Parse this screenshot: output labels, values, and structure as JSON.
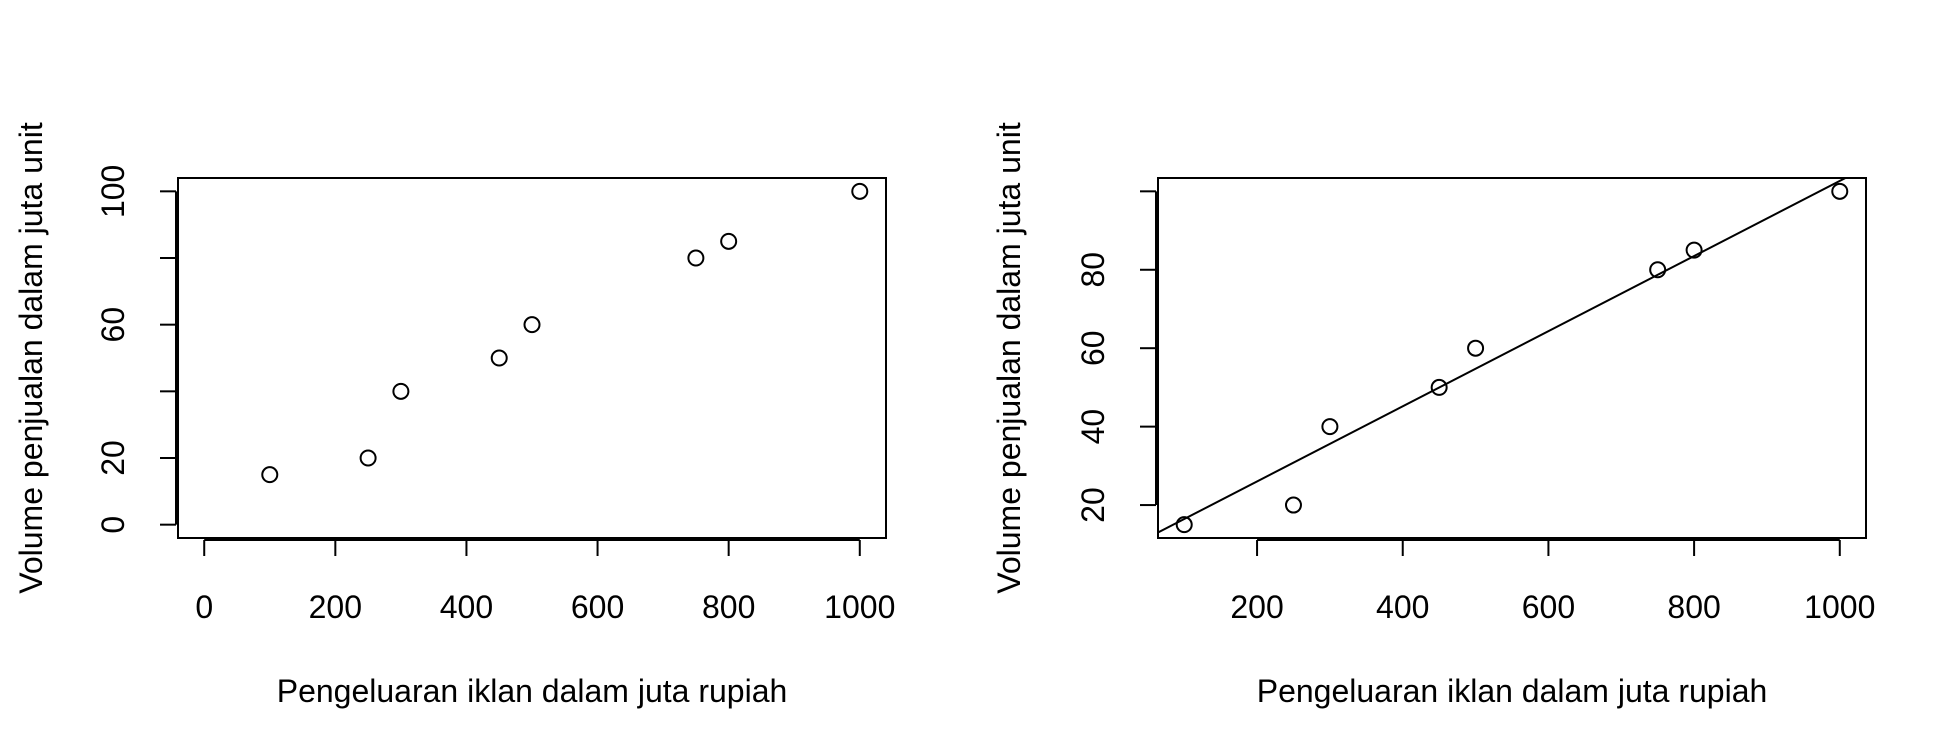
{
  "chart_data": [
    {
      "type": "scatter",
      "xlabel": "Pengeluaran iklan dalam juta rupiah",
      "ylabel": "Volume penjualan dalam juta unit",
      "xlim": [
        -40,
        1040
      ],
      "ylim": [
        -4,
        104
      ],
      "xticks": [
        0,
        200,
        400,
        600,
        800,
        1000
      ],
      "xtick_labels": [
        "0",
        "200",
        "400",
        "600",
        "800",
        "1000"
      ],
      "yticks": [
        0,
        20,
        40,
        60,
        80,
        100
      ],
      "ytick_labels": [
        "0",
        "20",
        "",
        "60",
        "",
        "100"
      ],
      "grid": false,
      "series": [
        {
          "x": [
            100,
            250,
            300,
            450,
            500,
            750,
            800,
            1000
          ],
          "y": [
            15,
            20,
            40,
            50,
            60,
            80,
            85,
            100
          ]
        }
      ]
    },
    {
      "type": "scatter",
      "xlabel": "Pengeluaran iklan dalam juta rupiah",
      "ylabel": "Volume penjualan dalam juta unit",
      "xlim": [
        64,
        1036
      ],
      "ylim": [
        11.6,
        103.4
      ],
      "xticks": [
        200,
        400,
        600,
        800,
        1000
      ],
      "xtick_labels": [
        "200",
        "400",
        "600",
        "800",
        "1000"
      ],
      "yticks": [
        20,
        40,
        60,
        80,
        100
      ],
      "ytick_labels": [
        "20",
        "40",
        "60",
        "80",
        ""
      ],
      "grid": false,
      "series": [
        {
          "x": [
            100,
            250,
            300,
            450,
            500,
            750,
            800,
            1000
          ],
          "y": [
            15,
            20,
            40,
            50,
            60,
            80,
            85,
            100
          ]
        }
      ],
      "fit_line": {
        "intercept": 6.86,
        "slope": 0.0958
      }
    }
  ]
}
